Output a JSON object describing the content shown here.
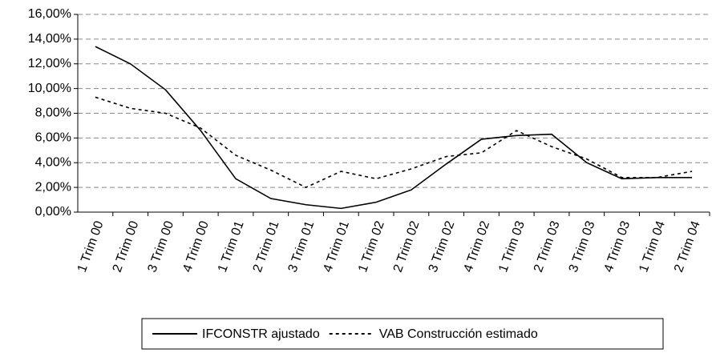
{
  "chart_data": {
    "type": "line",
    "categories": [
      "1 Trim 00",
      "2 Trim 00",
      "3 Trim 00",
      "4 Trim 00",
      "1 Trim 01",
      "2 Trim 01",
      "3 Trim 01",
      "4 Trim 01",
      "1 Trim 02",
      "2 Trim 02",
      "3 Trim 02",
      "4 Trim 02",
      "1 Trim 03",
      "2 Trim 03",
      "3 Trim 03",
      "4 Trim 03",
      "1 Trim 04",
      "2 Trim 04"
    ],
    "series": [
      {
        "name": "IFCONSTR ajustado",
        "color": "#000000",
        "line_style": "solid",
        "values": [
          13.4,
          12.0,
          9.9,
          6.6,
          2.7,
          1.1,
          0.6,
          0.3,
          0.8,
          1.8,
          3.9,
          5.9,
          6.2,
          6.3,
          4.0,
          2.7,
          2.8,
          2.8
        ]
      },
      {
        "name": "VAB Construcción estimado",
        "color": "#000000",
        "line_style": "dashed",
        "values": [
          9.3,
          8.4,
          8.0,
          6.8,
          4.6,
          3.4,
          2.0,
          3.3,
          2.7,
          3.5,
          4.5,
          4.8,
          6.6,
          5.3,
          4.3,
          2.8,
          2.8,
          3.3
        ]
      }
    ],
    "ylim": [
      0,
      16
    ],
    "yticks": [
      {
        "value": 0,
        "label": "0,00%"
      },
      {
        "value": 2,
        "label": "2,00%"
      },
      {
        "value": 4,
        "label": "4,00%"
      },
      {
        "value": 6,
        "label": "6,00%"
      },
      {
        "value": 8,
        "label": "8,00%"
      },
      {
        "value": 10,
        "label": "10,00%"
      },
      {
        "value": 12,
        "label": "12,00%"
      },
      {
        "value": 14,
        "label": "14,00%"
      },
      {
        "value": 16,
        "label": "16,00%"
      }
    ],
    "grid": true,
    "legend": "bottom"
  }
}
